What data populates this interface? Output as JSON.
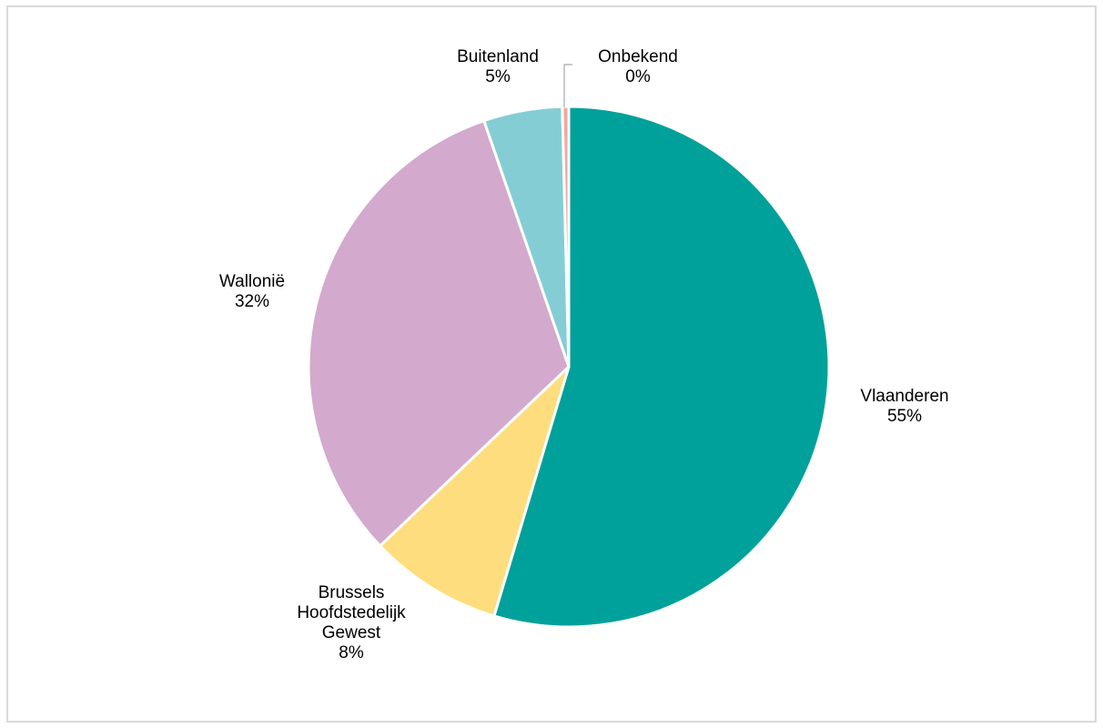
{
  "chart_data": {
    "type": "pie",
    "title": "",
    "start_angle_deg": 0,
    "direction": "clockwise",
    "slices": [
      {
        "label": [
          "Vlaanderen"
        ],
        "value_label": "55%",
        "value": 54.8,
        "color": "#00a19a"
      },
      {
        "label": [
          "Brussels",
          "Hoofdstedelijk",
          "Gewest"
        ],
        "value_label": "8%",
        "value": 8.3,
        "color": "#fedd7e"
      },
      {
        "label": [
          "Wallonië"
        ],
        "value_label": "32%",
        "value": 31.9,
        "color": "#d3a9cd"
      },
      {
        "label": [
          "Buitenland"
        ],
        "value_label": "5%",
        "value": 4.9,
        "color": "#85cdd4"
      },
      {
        "label": [
          "Onbekend"
        ],
        "value_label": "0%",
        "value": 0.4,
        "color": "#f4a6a2"
      }
    ]
  }
}
